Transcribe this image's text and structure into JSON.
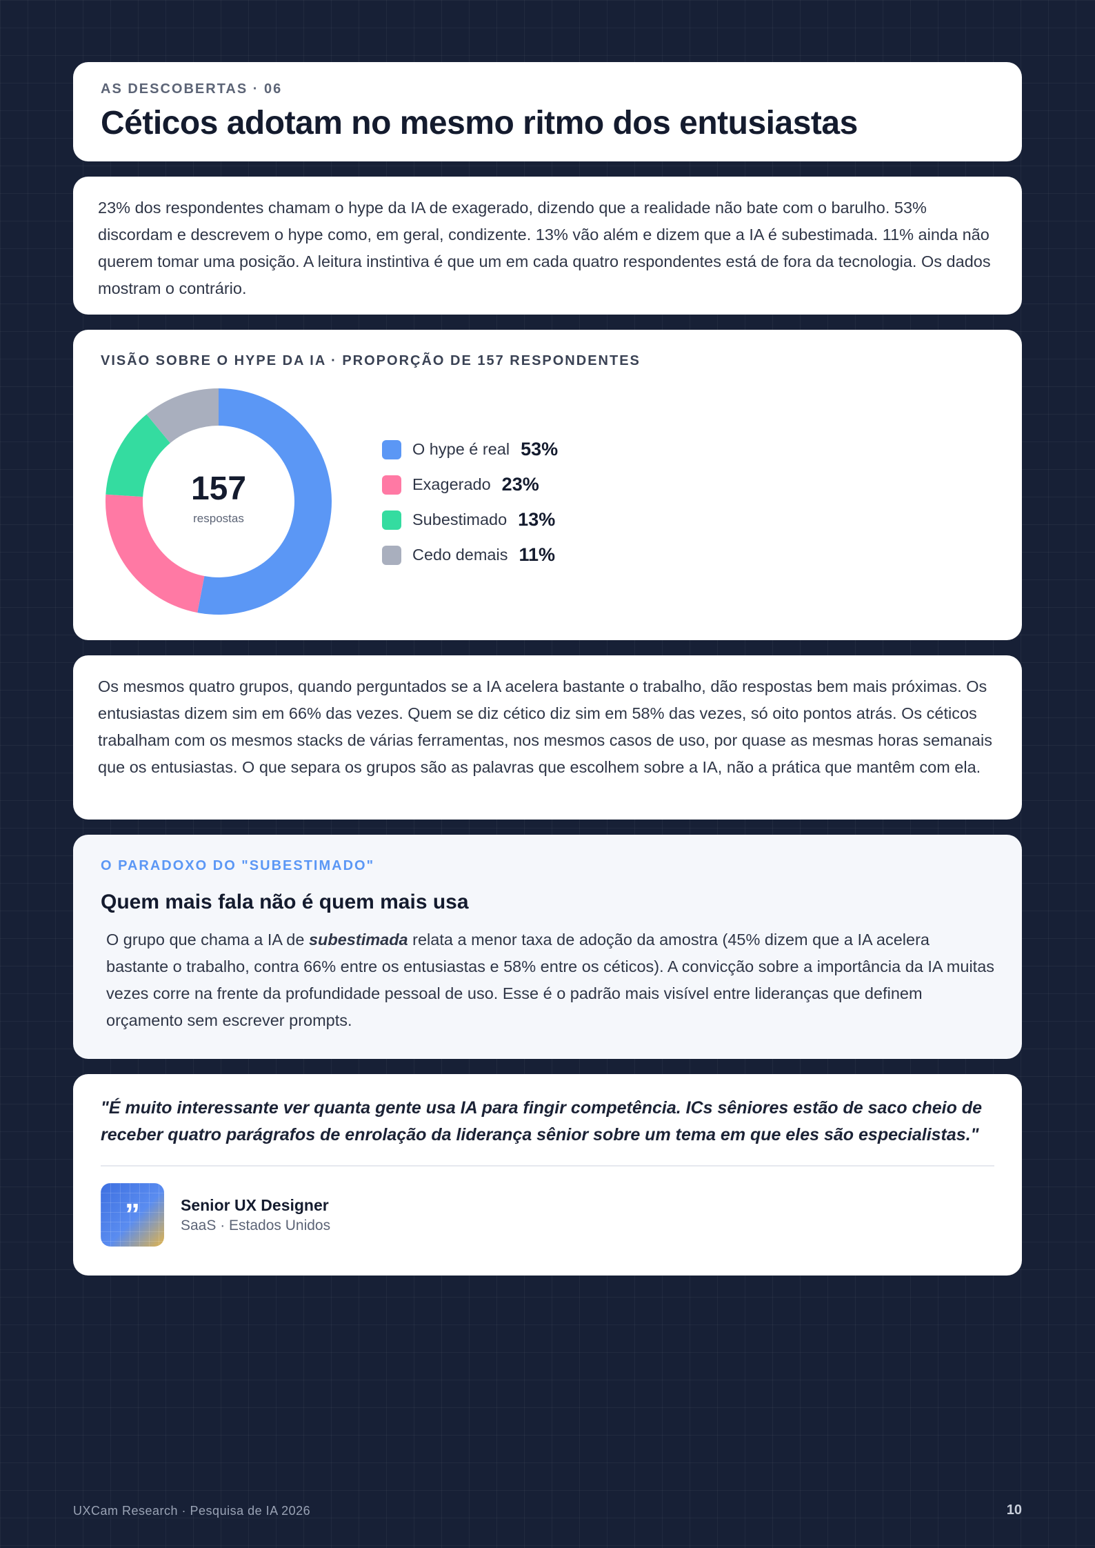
{
  "header": {
    "eyebrow": "AS DESCOBERTAS · 06",
    "title": "Céticos adotam no mesmo ritmo dos entusiastas"
  },
  "intro": {
    "text": "23% dos respondentes chamam o hype da IA de exagerado, dizendo que a realidade não bate com o barulho. 53% discordam e descrevem o hype como, em geral, condizente. 13% vão além e dizem que a IA é subestimada. 11% ainda não querem tomar uma posição. A leitura instintiva é que um em cada quatro respondentes está de fora da tecnologia. Os dados mostram o contrário."
  },
  "chart": {
    "eyebrow": "VISÃO SOBRE O HYPE DA IA · PROPORÇÃO DE 157 RESPONDENTES",
    "center_value": "157",
    "center_label": "respostas",
    "legend": [
      {
        "label": "O hype é real",
        "value": "53%"
      },
      {
        "label": "Exagerado",
        "value": "23%"
      },
      {
        "label": "Subestimado",
        "value": "13%"
      },
      {
        "label": "Cedo demais",
        "value": "11%"
      }
    ]
  },
  "chart_data": {
    "type": "pie",
    "variant": "donut",
    "title": "VISÃO SOBRE O HYPE DA IA · PROPORÇÃO DE 157 RESPONDENTES",
    "categories": [
      "O hype é real",
      "Exagerado",
      "Subestimado",
      "Cedo demais"
    ],
    "values": [
      53,
      23,
      13,
      11
    ],
    "colors": [
      "#5b97f5",
      "#ff79a4",
      "#34dca0",
      "#a9afbe"
    ],
    "total": 157,
    "unit": "%",
    "legend": "right"
  },
  "body": {
    "text": "Os mesmos quatro grupos, quando perguntados se a IA acelera bastante o trabalho, dão respostas bem mais próximas. Os entusiastas dizem sim em 66% das vezes. Quem se diz cético diz sim em 58% das vezes, só oito pontos atrás. Os céticos trabalham com os mesmos stacks de várias ferramentas, nos mesmos casos de uso, por quase as mesmas horas semanais que os entusiastas. O que separa os grupos são as palavras que escolhem sobre a IA, não a prática que mantêm com ela."
  },
  "callout": {
    "eyebrow": "O PARADOXO DO \"SUBESTIMADO\"",
    "heading": "Quem mais fala não é quem mais usa",
    "text_before": "O grupo que chama a IA de ",
    "emphasis": "subestimada",
    "text_after": " relata a menor taxa de adoção da amostra (45% dizem que a IA acelera bastante o trabalho, contra 66% entre os entusiastas e 58% entre os céticos). A convicção sobre a importância da IA muitas vezes corre na frente da profundidade pessoal de uso. Esse é o padrão mais visível entre lideranças que definem orçamento sem escrever prompts."
  },
  "quote": {
    "text": "\"É muito interessante ver quanta gente usa IA para fingir competência. ICs sêniores estão de saco cheio de receber quatro parágrafos de enrolação da liderança sênior sobre um tema em que eles são especialistas.\"",
    "avatar_glyph": "”",
    "author_name": "Senior UX Designer",
    "author_meta": "SaaS · Estados Unidos"
  },
  "footer": {
    "left": "UXCam Research · Pesquisa de IA 2026",
    "page": "10"
  }
}
